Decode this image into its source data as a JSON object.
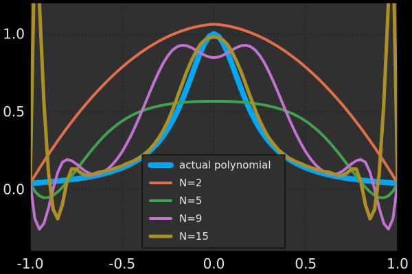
{
  "chart_data": {
    "type": "line",
    "title": "",
    "xlabel": "",
    "ylabel": "",
    "xlim": [
      -1.0,
      1.0
    ],
    "ylim": [
      -0.4,
      1.2
    ],
    "grid": true,
    "legend_position": "bottom-center",
    "x_ticks": [
      {
        "value": -1.0,
        "label": "-1.0"
      },
      {
        "value": -0.5,
        "label": "-0.5"
      },
      {
        "value": 0.0,
        "label": "0.0"
      },
      {
        "value": 0.5,
        "label": "0.5"
      },
      {
        "value": 1.0,
        "label": "1.0"
      }
    ],
    "y_ticks": [
      {
        "value": 0.0,
        "label": "0.0"
      },
      {
        "value": 0.5,
        "label": "0.5"
      },
      {
        "value": 1.0,
        "label": "1.0"
      }
    ],
    "x": [
      -1.0,
      -0.975,
      -0.95,
      -0.925,
      -0.9,
      -0.875,
      -0.85,
      -0.825,
      -0.8,
      -0.775,
      -0.75,
      -0.725,
      -0.7,
      -0.675,
      -0.65,
      -0.625,
      -0.6,
      -0.575,
      -0.55,
      -0.525,
      -0.5,
      -0.475,
      -0.45,
      -0.425,
      -0.4,
      -0.375,
      -0.35,
      -0.325,
      -0.3,
      -0.275,
      -0.25,
      -0.225,
      -0.2,
      -0.175,
      -0.15,
      -0.125,
      -0.1,
      -0.075,
      -0.05,
      -0.025,
      0.0,
      0.025,
      0.05,
      0.075,
      0.1,
      0.125,
      0.15,
      0.175,
      0.2,
      0.225,
      0.25,
      0.275,
      0.3,
      0.325,
      0.35,
      0.375,
      0.4,
      0.425,
      0.45,
      0.475,
      0.5,
      0.525,
      0.55,
      0.575,
      0.6,
      0.625,
      0.65,
      0.675,
      0.7,
      0.725,
      0.75,
      0.775,
      0.8,
      0.825,
      0.85,
      0.875,
      0.9,
      0.925,
      0.95,
      0.975,
      1.0
    ],
    "series": [
      {
        "name": "actual polynomial",
        "color": "#00a8f4",
        "width": 8,
        "values": [
          0.0385,
          0.0404,
          0.0424,
          0.0446,
          0.0471,
          0.0497,
          0.0525,
          0.0556,
          0.0588,
          0.0624,
          0.0664,
          0.0707,
          0.0755,
          0.0807,
          0.0865,
          0.0929,
          0.1,
          0.1079,
          0.1168,
          0.1267,
          0.1379,
          0.1506,
          0.1649,
          0.1813,
          0.2,
          0.2215,
          0.2462,
          0.2747,
          0.3077,
          0.346,
          0.3902,
          0.4413,
          0.5,
          0.5664,
          0.64,
          0.719,
          0.8,
          0.8767,
          0.9412,
          0.9846,
          1.0,
          0.9846,
          0.9412,
          0.8767,
          0.8,
          0.719,
          0.64,
          0.5664,
          0.5,
          0.4413,
          0.3902,
          0.346,
          0.3077,
          0.2747,
          0.2462,
          0.2215,
          0.2,
          0.1813,
          0.1649,
          0.1506,
          0.1379,
          0.1267,
          0.1168,
          0.1079,
          0.1,
          0.0929,
          0.0865,
          0.0807,
          0.0755,
          0.0707,
          0.0664,
          0.0624,
          0.0588,
          0.0556,
          0.0525,
          0.0497,
          0.0471,
          0.0446,
          0.0424,
          0.0404,
          0.0385
        ]
      },
      {
        "name": "N=2",
        "color": "#e26f46",
        "width": 4,
        "values": [
          0.0385,
          0.087,
          0.1343,
          0.1805,
          0.2254,
          0.2692,
          0.3118,
          0.3533,
          0.3935,
          0.4326,
          0.4705,
          0.5073,
          0.5428,
          0.5772,
          0.6105,
          0.6425,
          0.6734,
          0.7031,
          0.7316,
          0.7589,
          0.7851,
          0.8101,
          0.834,
          0.8566,
          0.8781,
          0.8984,
          0.9176,
          0.9355,
          0.9523,
          0.9679,
          0.9824,
          0.9957,
          1.0078,
          1.0187,
          1.0284,
          1.037,
          1.0445,
          1.0507,
          1.0558,
          1.0597,
          1.0624,
          1.0597,
          1.0558,
          1.0507,
          1.0445,
          1.037,
          1.0284,
          1.0187,
          1.0078,
          0.9957,
          0.9824,
          0.9679,
          0.9523,
          0.9355,
          0.9176,
          0.8984,
          0.8781,
          0.8566,
          0.834,
          0.8101,
          0.7851,
          0.7589,
          0.7316,
          0.7031,
          0.6734,
          0.6425,
          0.6105,
          0.5772,
          0.5428,
          0.5073,
          0.4705,
          0.4326,
          0.3935,
          0.3533,
          0.3118,
          0.2692,
          0.2254,
          0.1805,
          0.1343,
          0.087,
          0.0385
        ]
      },
      {
        "name": "N=5",
        "color": "#3da44d",
        "width": 4,
        "values": [
          0.0385,
          -0.0128,
          -0.0429,
          -0.0552,
          -0.053,
          -0.0393,
          -0.0167,
          0.0125,
          0.0465,
          0.0835,
          0.1222,
          0.1614,
          0.2002,
          0.2378,
          0.2737,
          0.3075,
          0.3389,
          0.3677,
          0.3939,
          0.4175,
          0.4385,
          0.4571,
          0.4735,
          0.4878,
          0.5003,
          0.5112,
          0.5206,
          0.5287,
          0.5357,
          0.5418,
          0.5469,
          0.5513,
          0.555,
          0.558,
          0.5605,
          0.5624,
          0.5638,
          0.5648,
          0.5655,
          0.5659,
          0.566,
          0.5659,
          0.5655,
          0.5648,
          0.5638,
          0.5624,
          0.5605,
          0.558,
          0.555,
          0.5513,
          0.5469,
          0.5418,
          0.5357,
          0.5287,
          0.5206,
          0.5112,
          0.5003,
          0.4878,
          0.4735,
          0.4571,
          0.4385,
          0.4175,
          0.3939,
          0.3677,
          0.3389,
          0.3075,
          0.2737,
          0.2378,
          0.2002,
          0.1614,
          0.1222,
          0.0835,
          0.0465,
          0.0125,
          -0.0167,
          -0.0393,
          -0.053,
          -0.0552,
          -0.0429,
          -0.0128,
          0.0385
        ]
      },
      {
        "name": "N=9",
        "color": "#c371d2",
        "width": 4,
        "values": [
          0.0385,
          -0.189,
          -0.2575,
          -0.2193,
          -0.1203,
          0.0018,
          0.1086,
          0.1737,
          0.1913,
          0.1835,
          0.164,
          0.1393,
          0.1162,
          0.1008,
          0.0954,
          0.0996,
          0.1124,
          0.1333,
          0.1617,
          0.1976,
          0.241,
          0.2916,
          0.3489,
          0.4119,
          0.4795,
          0.55,
          0.6212,
          0.6906,
          0.7554,
          0.8129,
          0.8603,
          0.8955,
          0.9175,
          0.9264,
          0.9239,
          0.9128,
          0.8964,
          0.8783,
          0.8621,
          0.8508,
          0.8469,
          0.8508,
          0.8621,
          0.8783,
          0.8964,
          0.9128,
          0.9239,
          0.9264,
          0.9175,
          0.8955,
          0.8603,
          0.8129,
          0.7554,
          0.6906,
          0.6212,
          0.55,
          0.4795,
          0.4119,
          0.3489,
          0.2916,
          0.241,
          0.1976,
          0.1617,
          0.1333,
          0.1124,
          0.0996,
          0.0954,
          0.1008,
          0.1162,
          0.1393,
          0.164,
          0.1835,
          0.1913,
          0.1737,
          0.1086,
          0.0018,
          -0.1203,
          -0.2193,
          -0.2575,
          -0.189,
          0.0385
        ]
      },
      {
        "name": "N=15",
        "color": "#ad8f23",
        "width": 5,
        "values": [
          0.0385,
          1.6,
          1.2,
          0.55,
          0.1,
          -0.13,
          -0.19,
          -0.1,
          0.05,
          0.13,
          0.13,
          0.105,
          0.09,
          0.09,
          0.1,
          0.11,
          0.115,
          0.12,
          0.13,
          0.14,
          0.15,
          0.165,
          0.175,
          0.19,
          0.205,
          0.225,
          0.255,
          0.29,
          0.33,
          0.38,
          0.44,
          0.51,
          0.59,
          0.67,
          0.75,
          0.82,
          0.88,
          0.93,
          0.96,
          0.975,
          0.98,
          0.975,
          0.96,
          0.93,
          0.88,
          0.82,
          0.75,
          0.67,
          0.59,
          0.51,
          0.44,
          0.38,
          0.33,
          0.29,
          0.255,
          0.225,
          0.205,
          0.19,
          0.175,
          0.165,
          0.15,
          0.14,
          0.13,
          0.12,
          0.115,
          0.11,
          0.1,
          0.09,
          0.09,
          0.105,
          0.13,
          0.13,
          0.05,
          -0.1,
          -0.19,
          -0.13,
          0.1,
          0.55,
          1.2,
          1.6,
          0.0385
        ]
      }
    ]
  }
}
